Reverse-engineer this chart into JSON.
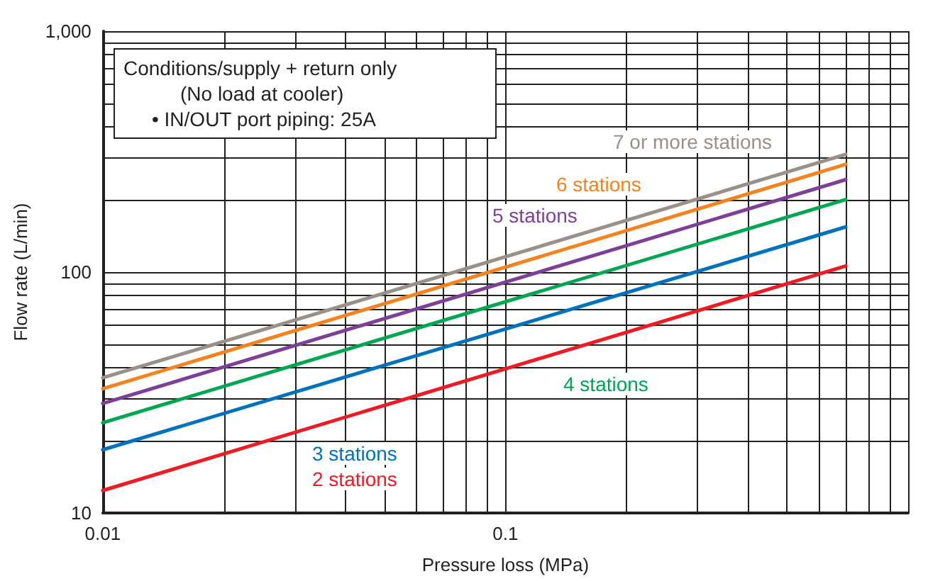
{
  "chart_data": {
    "type": "line",
    "xlabel": "Pressure loss (MPa)",
    "ylabel": "Flow rate (L/min)",
    "annotations": [
      "Conditions/supply + return only",
      "(No load at cooler)",
      "• IN/OUT port piping: 25A"
    ],
    "log": "xy",
    "grid": true,
    "legend": false,
    "marker": "none",
    "line_style": "solid",
    "xlim": [
      0.01,
      1
    ],
    "xticks": [
      0.01,
      0.1
    ],
    "ylim": [
      10,
      1000
    ],
    "yticks": [
      10,
      100,
      {
        "value": 1000,
        "label": "1,000"
      }
    ],
    "x": [
      0.01,
      0.7
    ],
    "series": [
      {
        "name": "2 stations",
        "color": "#ed1c24",
        "values": [
          12.4,
          106
        ]
      },
      {
        "name": "3 stations",
        "color": "#0072bc",
        "values": [
          18.3,
          154
        ]
      },
      {
        "name": "4 stations",
        "color": "#00a651",
        "values": [
          23.7,
          200
        ]
      },
      {
        "name": "5 stations",
        "color": "#7e3f98",
        "values": [
          28.5,
          242
        ]
      },
      {
        "name": "6 stations",
        "color": "#f58220",
        "values": [
          32.8,
          280
        ]
      },
      {
        "name": "7 or more stations",
        "color": "#999089",
        "values": [
          36.4,
          308
        ]
      }
    ]
  }
}
